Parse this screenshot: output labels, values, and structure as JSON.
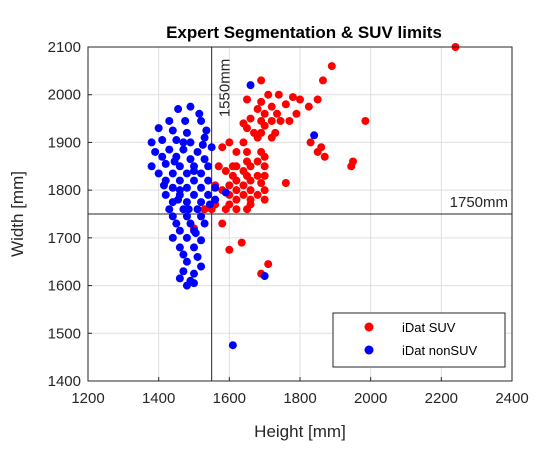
{
  "chart_data": {
    "type": "scatter",
    "title": "Expert Segmentation & SUV limits",
    "xlabel": "Height [mm]",
    "ylabel": "Width [mm]",
    "xlim": [
      1200,
      2400
    ],
    "ylim": [
      1400,
      2100
    ],
    "xticks": [
      1200,
      1400,
      1600,
      1800,
      2000,
      2200,
      2400
    ],
    "yticks": [
      1400,
      1500,
      1600,
      1700,
      1800,
      1900,
      2000,
      2100
    ],
    "grid": true,
    "legend_position": "bottom-right",
    "reference_lines": [
      {
        "orientation": "vertical",
        "value": 1550,
        "label": "1550mm"
      },
      {
        "orientation": "horizontal",
        "value": 1750,
        "label": "1750mm"
      }
    ],
    "series": [
      {
        "name": "iDat SUV",
        "color": "#ff0000",
        "points": [
          [
            2240,
            2100
          ],
          [
            1890,
            2060
          ],
          [
            1865,
            2030
          ],
          [
            1690,
            2030
          ],
          [
            1710,
            2000
          ],
          [
            1740,
            2000
          ],
          [
            1780,
            1995
          ],
          [
            1800,
            1990
          ],
          [
            1850,
            1990
          ],
          [
            1690,
            1985
          ],
          [
            1680,
            1970
          ],
          [
            1720,
            1975
          ],
          [
            1760,
            1980
          ],
          [
            1825,
            1975
          ],
          [
            1700,
            1960
          ],
          [
            1735,
            1960
          ],
          [
            1790,
            1960
          ],
          [
            1985,
            1945
          ],
          [
            1770,
            1945
          ],
          [
            1745,
            1945
          ],
          [
            1720,
            1945
          ],
          [
            1640,
            1940
          ],
          [
            1660,
            1950
          ],
          [
            1700,
            1935
          ],
          [
            1690,
            1920
          ],
          [
            1730,
            1920
          ],
          [
            1670,
            1920
          ],
          [
            1650,
            1930
          ],
          [
            1680,
            1910
          ],
          [
            1720,
            1910
          ],
          [
            1830,
            1900
          ],
          [
            1860,
            1890
          ],
          [
            1850,
            1880
          ],
          [
            1870,
            1870
          ],
          [
            1640,
            1900
          ],
          [
            1600,
            1900
          ],
          [
            1580,
            1890
          ],
          [
            1620,
            1880
          ],
          [
            1650,
            1880
          ],
          [
            1690,
            1880
          ],
          [
            1700,
            1870
          ],
          [
            1650,
            1860
          ],
          [
            1680,
            1860
          ],
          [
            1950,
            1860
          ],
          [
            1945,
            1850
          ],
          [
            1570,
            1850
          ],
          [
            1620,
            1850
          ],
          [
            1660,
            1850
          ],
          [
            1700,
            1850
          ],
          [
            1590,
            1840
          ],
          [
            1640,
            1840
          ],
          [
            1680,
            1830
          ],
          [
            1610,
            1830
          ],
          [
            1650,
            1830
          ],
          [
            1700,
            1830
          ],
          [
            1620,
            1820
          ],
          [
            1660,
            1820
          ],
          [
            1600,
            1810
          ],
          [
            1640,
            1810
          ],
          [
            1690,
            1815
          ],
          [
            1760,
            1815
          ],
          [
            1560,
            1810
          ],
          [
            1580,
            1800
          ],
          [
            1620,
            1800
          ],
          [
            1660,
            1800
          ],
          [
            1700,
            1800
          ],
          [
            1600,
            1790
          ],
          [
            1640,
            1790
          ],
          [
            1680,
            1790
          ],
          [
            1700,
            1780
          ],
          [
            1660,
            1780
          ],
          [
            1620,
            1780
          ],
          [
            1560,
            1770
          ],
          [
            1600,
            1770
          ],
          [
            1660,
            1770
          ],
          [
            1530,
            1760
          ],
          [
            1590,
            1760
          ],
          [
            1620,
            1760
          ],
          [
            1650,
            1760
          ],
          [
            1580,
            1730
          ],
          [
            1500,
            1720
          ],
          [
            1635,
            1690
          ],
          [
            1600,
            1675
          ],
          [
            1710,
            1645
          ],
          [
            1690,
            1625
          ],
          [
            1550,
            1760
          ],
          [
            1610,
            1850
          ],
          [
            1690,
            1945
          ],
          [
            1650,
            1990
          ]
        ]
      },
      {
        "name": "iDat nonSUV",
        "color": "#0000ff",
        "points": [
          [
            1660,
            2020
          ],
          [
            1490,
            1975
          ],
          [
            1515,
            1960
          ],
          [
            1455,
            1970
          ],
          [
            1430,
            1945
          ],
          [
            1475,
            1945
          ],
          [
            1520,
            1945
          ],
          [
            1400,
            1930
          ],
          [
            1440,
            1925
          ],
          [
            1480,
            1920
          ],
          [
            1535,
            1925
          ],
          [
            1840,
            1915
          ],
          [
            1380,
            1900
          ],
          [
            1410,
            1905
          ],
          [
            1450,
            1905
          ],
          [
            1490,
            1900
          ],
          [
            1530,
            1910
          ],
          [
            1390,
            1880
          ],
          [
            1430,
            1885
          ],
          [
            1470,
            1885
          ],
          [
            1510,
            1880
          ],
          [
            1550,
            1890
          ],
          [
            1410,
            1870
          ],
          [
            1450,
            1870
          ],
          [
            1490,
            1865
          ],
          [
            1530,
            1865
          ],
          [
            1380,
            1850
          ],
          [
            1420,
            1855
          ],
          [
            1460,
            1850
          ],
          [
            1500,
            1850
          ],
          [
            1540,
            1850
          ],
          [
            1400,
            1835
          ],
          [
            1440,
            1835
          ],
          [
            1480,
            1835
          ],
          [
            1520,
            1835
          ],
          [
            1420,
            1820
          ],
          [
            1460,
            1820
          ],
          [
            1500,
            1820
          ],
          [
            1540,
            1820
          ],
          [
            1440,
            1805
          ],
          [
            1480,
            1805
          ],
          [
            1520,
            1805
          ],
          [
            1560,
            1805
          ],
          [
            1420,
            1790
          ],
          [
            1460,
            1790
          ],
          [
            1500,
            1790
          ],
          [
            1540,
            1790
          ],
          [
            1590,
            1795
          ],
          [
            1440,
            1775
          ],
          [
            1480,
            1775
          ],
          [
            1520,
            1775
          ],
          [
            1560,
            1780
          ],
          [
            1430,
            1760
          ],
          [
            1470,
            1760
          ],
          [
            1510,
            1760
          ],
          [
            1440,
            1745
          ],
          [
            1480,
            1745
          ],
          [
            1520,
            1745
          ],
          [
            1450,
            1730
          ],
          [
            1490,
            1730
          ],
          [
            1530,
            1730
          ],
          [
            1460,
            1715
          ],
          [
            1500,
            1715
          ],
          [
            1440,
            1700
          ],
          [
            1480,
            1700
          ],
          [
            1520,
            1695
          ],
          [
            1460,
            1680
          ],
          [
            1500,
            1680
          ],
          [
            1470,
            1665
          ],
          [
            1510,
            1660
          ],
          [
            1480,
            1650
          ],
          [
            1520,
            1640
          ],
          [
            1470,
            1630
          ],
          [
            1500,
            1625
          ],
          [
            1460,
            1615
          ],
          [
            1490,
            1610
          ],
          [
            1480,
            1600
          ],
          [
            1500,
            1605
          ],
          [
            1700,
            1620
          ],
          [
            1610,
            1475
          ],
          [
            1460,
            1800
          ],
          [
            1500,
            1840
          ],
          [
            1470,
            1900
          ],
          [
            1525,
            1895
          ],
          [
            1445,
            1860
          ],
          [
            1415,
            1810
          ],
          [
            1455,
            1780
          ],
          [
            1485,
            1760
          ],
          [
            1505,
            1710
          ],
          [
            1545,
            1770
          ]
        ]
      }
    ]
  }
}
